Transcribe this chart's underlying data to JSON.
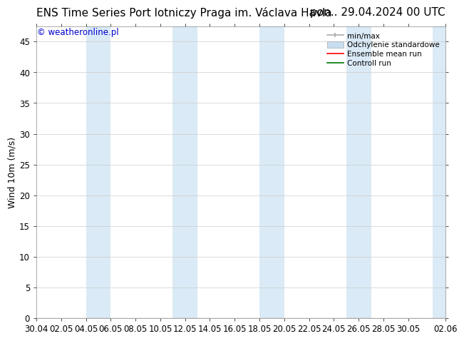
{
  "title_left": "ENS Time Series Port lotniczy Praga im. Václava Havla",
  "title_right": "pon.. 29.04.2024 00 UTC",
  "ylabel": "Wind 10m (m/s)",
  "watermark": "© weatheronline.pl",
  "watermark_color": "#0000cc",
  "ylim": [
    0,
    47.5
  ],
  "yticks": [
    0,
    5,
    10,
    15,
    20,
    25,
    30,
    35,
    40,
    45
  ],
  "x_start": 0,
  "x_end": 33,
  "xtick_labels": [
    "30.04",
    "02.05",
    "04.05",
    "06.05",
    "08.05",
    "10.05",
    "12.05",
    "14.05",
    "16.05",
    "18.05",
    "20.05",
    "22.05",
    "24.05",
    "26.05",
    "28.05",
    "30.05",
    "02.06"
  ],
  "xtick_positions": [
    0,
    2,
    4,
    6,
    8,
    10,
    12,
    14,
    16,
    18,
    20,
    22,
    24,
    26,
    28,
    30,
    33
  ],
  "blue_bands": [
    [
      4,
      6
    ],
    [
      11,
      13
    ],
    [
      18,
      20
    ],
    [
      25,
      27
    ],
    [
      32,
      33
    ]
  ],
  "blue_band_color": "#daeaf6",
  "bg_color": "#ffffff",
  "grid_color": "#cccccc",
  "ensemble_mean_color": "#ff0000",
  "control_run_color": "#007700",
  "minmax_color": "#aaaaaa",
  "odch_color": "#c8ddf0",
  "title_fontsize": 11,
  "axis_fontsize": 9,
  "tick_fontsize": 8.5,
  "legend_fontsize": 7.5,
  "watermark_fontsize": 8.5
}
